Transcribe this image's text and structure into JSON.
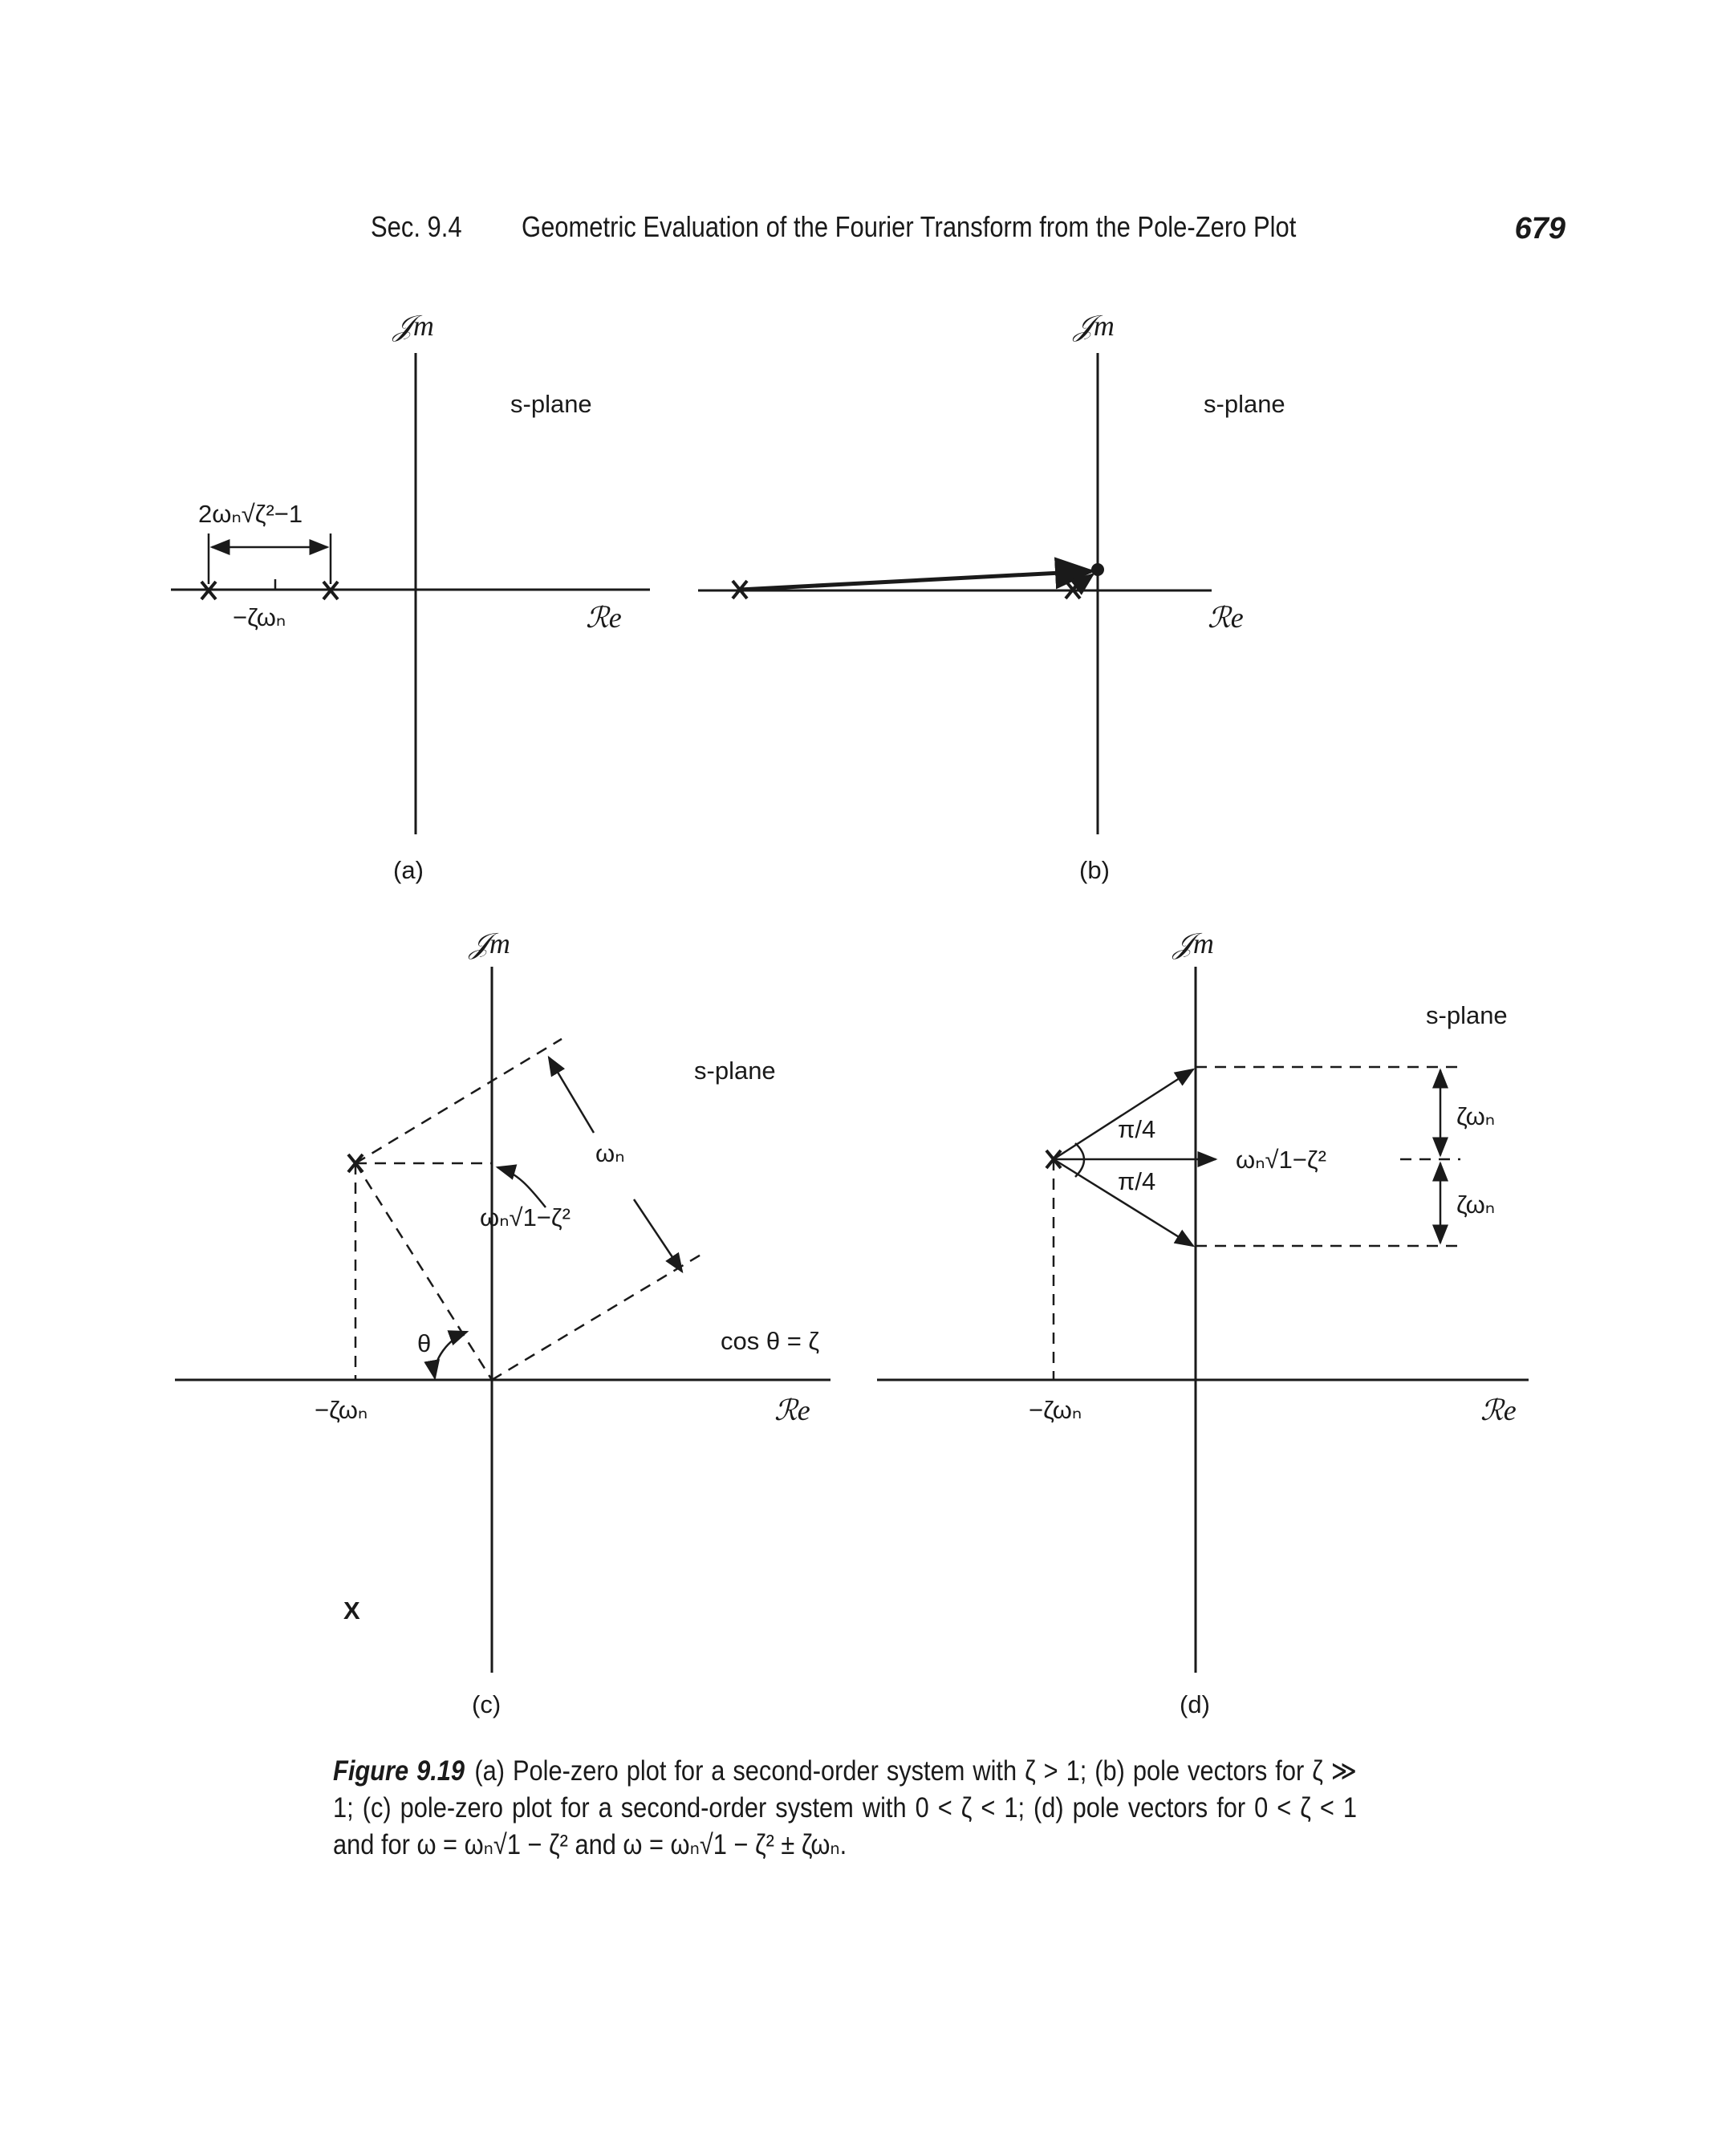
{
  "header": {
    "section": "Sec. 9.4",
    "title": "Geometric Evaluation of the Fourier Transform from the Pole-Zero Plot",
    "page": "679"
  },
  "labels": {
    "im_axis": "𝒥m",
    "re_axis": "ℛe",
    "s_plane": "s-plane",
    "panel_a": "(a)",
    "panel_b": "(b)",
    "panel_c": "(c)",
    "panel_d": "(d)",
    "a_width": "2ωₙ√ζ²−1",
    "a_center": "−ζωₙ",
    "c_real": "−ζωₙ",
    "c_omega": "ωₙ",
    "c_imag": "ωₙ√1−ζ²",
    "c_theta": "θ",
    "c_cos": "cos θ = ζ",
    "d_real": "−ζωₙ",
    "d_angle_top": "π/4",
    "d_angle_bottom": "π/4",
    "d_imag": "ωₙ√1−ζ²",
    "d_zeta_top": "ζωₙ",
    "d_zeta_bottom": "ζωₙ",
    "c_lower_pole": "X"
  },
  "caption": {
    "label": "Figure 9.19",
    "text": "(a) Pole-zero plot for a second-order system with ζ > 1; (b) pole vectors for ζ ≫ 1; (c) pole-zero plot for a second-order system with 0 < ζ < 1; (d) pole vectors for 0 < ζ < 1 and for ω = ωₙ√1 − ζ² and ω = ωₙ√1 − ζ² ± ζωₙ."
  }
}
